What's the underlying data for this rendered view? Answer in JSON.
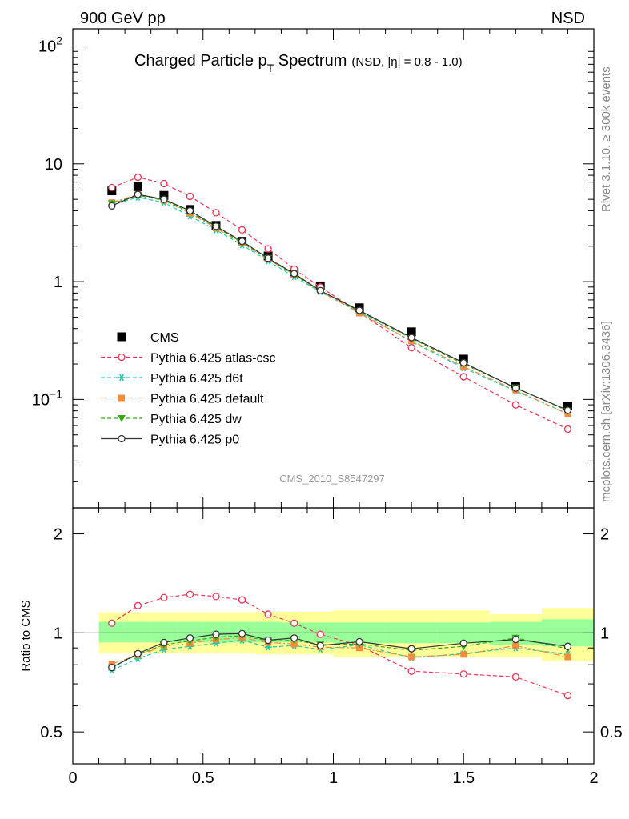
{
  "header": {
    "left_label": "900 GeV pp",
    "right_label": "NSD"
  },
  "side_labels": {
    "rivet": "Rivet 3.1.10, ≥ 300k events",
    "mcplots": "mcplots.cern.ch [arXiv:1306.3436]"
  },
  "chart_data": [
    {
      "type": "scatter",
      "panel": "main",
      "title_main": "Charged Particle p",
      "title_sub": "T",
      "title_rest": " Spectrum",
      "title_extra": "(NSD, |η| = 0.8 - 1.0)",
      "watermark": "CMS_2010_S8547297",
      "xlabel": "",
      "ylabel": "",
      "y_scale": "log",
      "xlim": [
        0,
        2
      ],
      "ylim": [
        0.012,
        140
      ],
      "yticks_major": [
        {
          "v": 0.1,
          "base": "10",
          "exp": "−1"
        },
        {
          "v": 1,
          "base": "1",
          "exp": ""
        },
        {
          "v": 10,
          "base": "10",
          "exp": ""
        },
        {
          "v": 100,
          "base": "10",
          "exp": "2"
        }
      ],
      "legend_position": "left-bottom",
      "x": [
        0.15,
        0.25,
        0.35,
        0.45,
        0.55,
        0.65,
        0.75,
        0.85,
        0.95,
        1.1,
        1.3,
        1.5,
        1.7,
        1.9
      ],
      "series": [
        {
          "name": "CMS",
          "style": "data",
          "color": "#000000",
          "values": [
            5.9,
            6.4,
            5.4,
            4.1,
            3.0,
            2.2,
            1.65,
            1.2,
            0.92,
            0.6,
            0.375,
            0.22,
            0.13,
            0.088
          ]
        },
        {
          "name": "Pythia 6.425 atlas-csc",
          "style": "open-circle-dashed",
          "color": "#ee3355",
          "values": [
            6.3,
            7.7,
            6.8,
            5.3,
            3.85,
            2.75,
            1.9,
            1.28,
            0.9,
            0.55,
            0.275,
            0.156,
            0.09,
            0.056
          ]
        },
        {
          "name": "Pythia 6.425 d6t",
          "style": "star-dashed",
          "color": "#22ccaa",
          "values": [
            4.5,
            5.2,
            4.7,
            3.6,
            2.75,
            2.05,
            1.5,
            1.1,
            0.82,
            0.55,
            0.31,
            0.185,
            0.118,
            0.076
          ]
        },
        {
          "name": "Pythia 6.425 default",
          "style": "square-dashdot",
          "color": "#f28c3c",
          "values": [
            4.7,
            5.5,
            4.9,
            3.8,
            2.85,
            2.12,
            1.55,
            1.15,
            0.83,
            0.54,
            0.315,
            0.19,
            0.12,
            0.075
          ]
        },
        {
          "name": "Pythia 6.425 dw",
          "style": "triangle-down-dashed",
          "color": "#33aa11",
          "values": [
            4.6,
            5.4,
            4.9,
            3.9,
            2.9,
            2.15,
            1.58,
            1.14,
            0.84,
            0.56,
            0.33,
            0.2,
            0.126,
            0.08
          ]
        },
        {
          "name": "Pythia 6.425 p0",
          "style": "open-circle-solid",
          "color": "#333333",
          "values": [
            4.4,
            5.5,
            5.0,
            4.0,
            2.95,
            2.2,
            1.58,
            1.17,
            0.84,
            0.57,
            0.335,
            0.205,
            0.125,
            0.081
          ]
        }
      ]
    },
    {
      "type": "scatter",
      "panel": "ratio",
      "xlabel": "",
      "ylabel": "Ratio to CMS",
      "y_scale": "log",
      "xlim": [
        0,
        2
      ],
      "ylim": [
        0.4,
        2.4
      ],
      "yticks_major": [
        0.5,
        1,
        2
      ],
      "xticks_major": [
        0,
        0.5,
        1,
        1.5,
        2
      ],
      "xtick_labels": [
        "0",
        "0.5",
        "1",
        "1.5",
        "2"
      ],
      "bands": [
        {
          "name": "stat",
          "color": "#99ff99",
          "bins": [
            {
              "x": [
                0.1,
                0.2
              ],
              "lo": 0.935,
              "hi": 1.08
            },
            {
              "x": [
                0.2,
                0.3
              ],
              "lo": 0.935,
              "hi": 1.08
            },
            {
              "x": [
                0.3,
                0.4
              ],
              "lo": 0.935,
              "hi": 1.08
            },
            {
              "x": [
                0.4,
                0.5
              ],
              "lo": 0.935,
              "hi": 1.08
            },
            {
              "x": [
                0.5,
                0.6
              ],
              "lo": 0.935,
              "hi": 1.08
            },
            {
              "x": [
                0.6,
                0.7
              ],
              "lo": 0.935,
              "hi": 1.08
            },
            {
              "x": [
                0.7,
                0.8
              ],
              "lo": 0.935,
              "hi": 1.08
            },
            {
              "x": [
                0.8,
                0.9
              ],
              "lo": 0.935,
              "hi": 1.075
            },
            {
              "x": [
                0.9,
                1.0
              ],
              "lo": 0.935,
              "hi": 1.075
            },
            {
              "x": [
                1.0,
                1.2
              ],
              "lo": 0.93,
              "hi": 1.075
            },
            {
              "x": [
                1.2,
                1.4
              ],
              "lo": 0.93,
              "hi": 1.075
            },
            {
              "x": [
                1.4,
                1.6
              ],
              "lo": 0.93,
              "hi": 1.075
            },
            {
              "x": [
                1.6,
                1.8
              ],
              "lo": 0.92,
              "hi": 1.08
            },
            {
              "x": [
                1.8,
                2.0
              ],
              "lo": 0.91,
              "hi": 1.1
            }
          ]
        },
        {
          "name": "total",
          "color": "#ffff99",
          "bins": [
            {
              "x": [
                0.1,
                0.2
              ],
              "lo": 0.865,
              "hi": 1.155
            },
            {
              "x": [
                0.2,
                0.3
              ],
              "lo": 0.865,
              "hi": 1.155
            },
            {
              "x": [
                0.3,
                0.4
              ],
              "lo": 0.865,
              "hi": 1.155
            },
            {
              "x": [
                0.4,
                0.5
              ],
              "lo": 0.865,
              "hi": 1.155
            },
            {
              "x": [
                0.5,
                0.6
              ],
              "lo": 0.865,
              "hi": 1.155
            },
            {
              "x": [
                0.6,
                0.7
              ],
              "lo": 0.865,
              "hi": 1.155
            },
            {
              "x": [
                0.7,
                0.8
              ],
              "lo": 0.86,
              "hi": 1.16
            },
            {
              "x": [
                0.8,
                0.9
              ],
              "lo": 0.86,
              "hi": 1.16
            },
            {
              "x": [
                0.9,
                1.0
              ],
              "lo": 0.86,
              "hi": 1.16
            },
            {
              "x": [
                1.0,
                1.2
              ],
              "lo": 0.845,
              "hi": 1.17
            },
            {
              "x": [
                1.2,
                1.4
              ],
              "lo": 0.845,
              "hi": 1.17
            },
            {
              "x": [
                1.4,
                1.6
              ],
              "lo": 0.845,
              "hi": 1.17
            },
            {
              "x": [
                1.6,
                1.8
              ],
              "lo": 0.845,
              "hi": 1.14
            },
            {
              "x": [
                1.8,
                2.0
              ],
              "lo": 0.82,
              "hi": 1.19
            }
          ]
        }
      ],
      "x": [
        0.15,
        0.25,
        0.35,
        0.45,
        0.55,
        0.65,
        0.75,
        0.85,
        0.95,
        1.1,
        1.3,
        1.5,
        1.7,
        1.9
      ],
      "series": [
        {
          "name": "Pythia 6.425 atlas-csc",
          "style": "open-circle-dashed",
          "color": "#ee3355",
          "values": [
            1.07,
            1.21,
            1.28,
            1.31,
            1.29,
            1.26,
            1.14,
            1.07,
            0.99,
            0.915,
            0.765,
            0.75,
            0.735,
            0.645
          ]
        },
        {
          "name": "Pythia 6.425 d6t",
          "style": "star-dashed",
          "color": "#22ccaa",
          "values": [
            0.77,
            0.835,
            0.89,
            0.91,
            0.93,
            0.95,
            0.905,
            0.915,
            0.89,
            0.92,
            0.84,
            0.865,
            0.9,
            0.86
          ]
        },
        {
          "name": "Pythia 6.425 default",
          "style": "square-dashdot",
          "color": "#f28c3c",
          "values": [
            0.805,
            0.855,
            0.91,
            0.93,
            0.955,
            0.965,
            0.935,
            0.925,
            0.905,
            0.9,
            0.845,
            0.86,
            0.915,
            0.845
          ]
        },
        {
          "name": "Pythia 6.425 dw",
          "style": "triangle-down-dashed",
          "color": "#33aa11",
          "values": [
            0.785,
            0.86,
            0.92,
            0.945,
            0.97,
            0.98,
            0.945,
            0.95,
            0.92,
            0.925,
            0.885,
            0.91,
            0.965,
            0.895
          ]
        },
        {
          "name": "Pythia 6.425 p0",
          "style": "open-circle-solid",
          "color": "#333333",
          "values": [
            0.785,
            0.865,
            0.935,
            0.965,
            0.99,
            0.995,
            0.95,
            0.965,
            0.915,
            0.94,
            0.895,
            0.93,
            0.955,
            0.91
          ]
        }
      ]
    }
  ]
}
